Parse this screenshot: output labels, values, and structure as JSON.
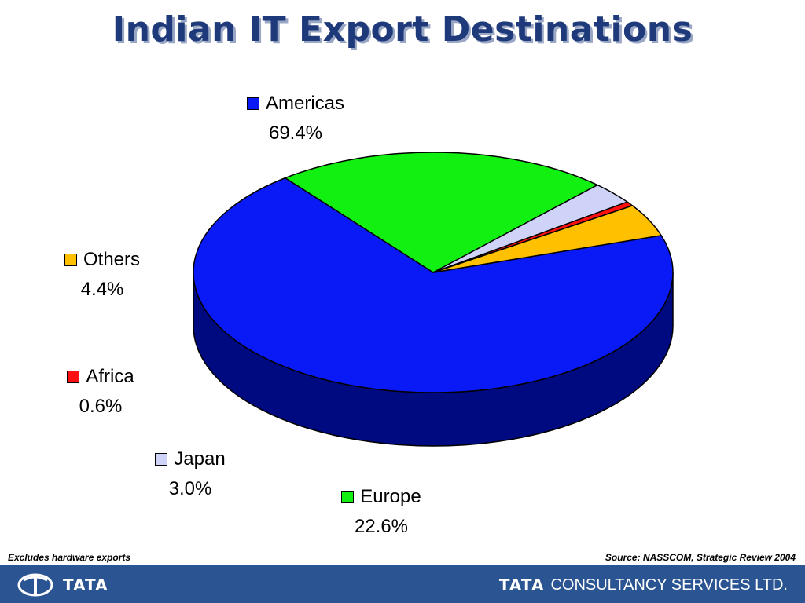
{
  "title": "Indian IT Export Destinations",
  "chart_data": {
    "type": "pie",
    "three_d": true,
    "title": "Indian IT Export Destinations",
    "slices": [
      {
        "label": "Americas",
        "value": 69.4,
        "display": "69.4%",
        "color": "#0a1af7",
        "side_color": "#000a80"
      },
      {
        "label": "Europe",
        "value": 22.6,
        "display": "22.6%",
        "color": "#11f011",
        "side_color": "#087a08"
      },
      {
        "label": "Japan",
        "value": 3.0,
        "display": "3.0%",
        "color": "#cfd3f7",
        "side_color": "#6a6d86"
      },
      {
        "label": "Africa",
        "value": 0.6,
        "display": "0.6%",
        "color": "#ff1010",
        "side_color": "#800000"
      },
      {
        "label": "Others",
        "value": 4.4,
        "display": "4.4%",
        "color": "#ffc000",
        "side_color": "#7a5c00"
      }
    ],
    "legend_placement": "around-pie"
  },
  "footnote_left": "Excludes hardware exports",
  "footnote_right": "Source: NASSCOM, Strategic Review 2004",
  "footer": {
    "left_logo_text": "TATA",
    "right_logo_bold": "TATA",
    "right_logo_rest": "CONSULTANCY SERVICES LTD.",
    "bar_color": "#2b5592"
  }
}
